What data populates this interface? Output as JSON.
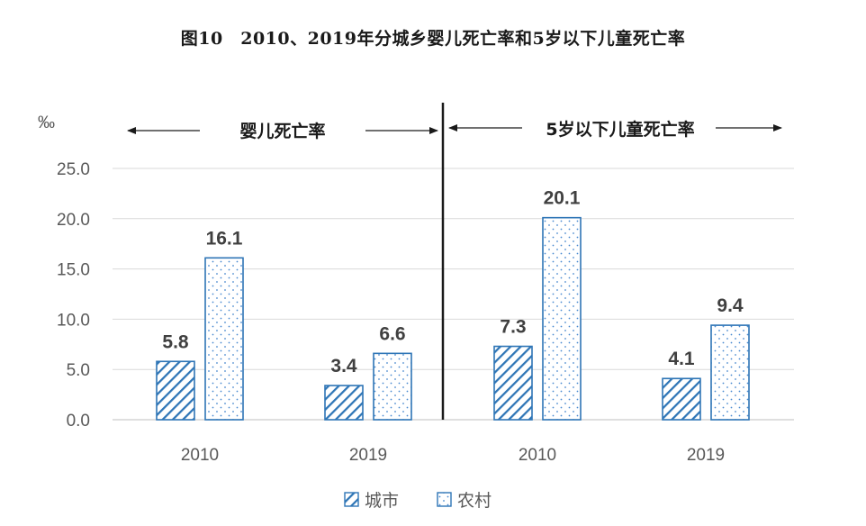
{
  "title": "图10　2010、2019年分城乡婴儿死亡率和5岁以下儿童死亡率",
  "chart_data": {
    "type": "bar",
    "unit_label": "‰",
    "ylim": [
      0,
      25
    ],
    "yticks": [
      "0.0",
      "5.0",
      "10.0",
      "15.0",
      "20.0",
      "25.0"
    ],
    "grid": true,
    "legend_position": "bottom",
    "groups": [
      {
        "name": "婴儿死亡率",
        "categories": [
          "2010",
          "2019"
        ]
      },
      {
        "name": "5岁以下儿童死亡率",
        "categories": [
          "2010",
          "2019"
        ]
      }
    ],
    "categories": [
      "2010",
      "2019",
      "2010",
      "2019"
    ],
    "series": [
      {
        "name": "城市",
        "pattern": "hatch",
        "color": "#2e75b6",
        "values": [
          5.8,
          3.4,
          7.3,
          4.1
        ]
      },
      {
        "name": "农村",
        "pattern": "dots",
        "color": "#2e75b6",
        "values": [
          16.1,
          6.6,
          20.1,
          9.4
        ]
      }
    ]
  }
}
